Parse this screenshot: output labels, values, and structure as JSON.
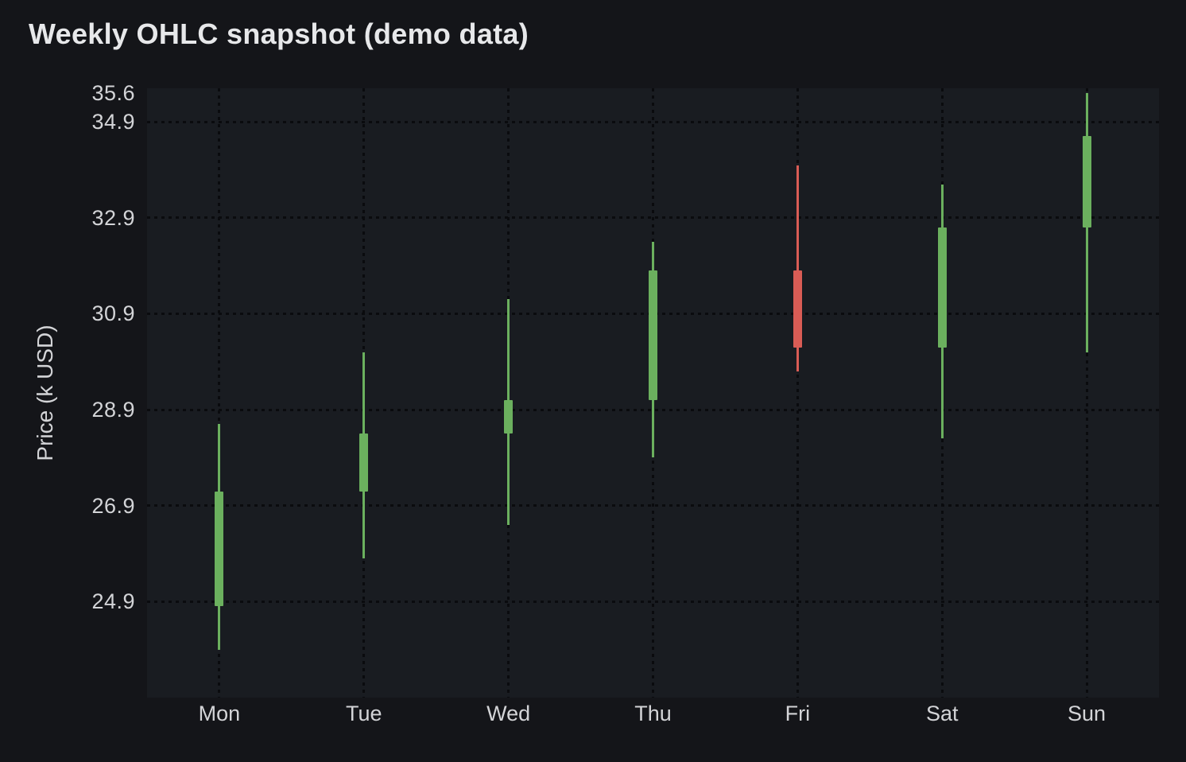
{
  "title": "Weekly OHLC snapshot (demo data)",
  "theme": {
    "page_bg": "#141519",
    "plot_bg": "#191c21",
    "grid_color": "#0a0b0e",
    "title_color": "#e7e8ea",
    "tick_label_color": "#d3d4d7"
  },
  "chart_data": {
    "type": "candlestick",
    "title": "Weekly OHLC snapshot (demo data)",
    "xlabel": "",
    "ylabel": "Price (k USD)",
    "categories": [
      "Mon",
      "Tue",
      "Wed",
      "Thu",
      "Fri",
      "Sat",
      "Sun"
    ],
    "series": [
      {
        "day": "Mon",
        "open": 24.8,
        "high": 28.6,
        "low": 23.9,
        "close": 27.2,
        "direction": "up"
      },
      {
        "day": "Tue",
        "open": 27.2,
        "high": 30.1,
        "low": 25.8,
        "close": 28.4,
        "direction": "up"
      },
      {
        "day": "Wed",
        "open": 28.4,
        "high": 31.2,
        "low": 26.5,
        "close": 29.1,
        "direction": "up"
      },
      {
        "day": "Thu",
        "open": 29.1,
        "high": 32.4,
        "low": 27.9,
        "close": 31.8,
        "direction": "up"
      },
      {
        "day": "Fri",
        "open": 31.8,
        "high": 34.0,
        "low": 29.7,
        "close": 30.2,
        "direction": "down"
      },
      {
        "day": "Sat",
        "open": 30.2,
        "high": 33.6,
        "low": 28.3,
        "close": 32.7,
        "direction": "up"
      },
      {
        "day": "Sun",
        "open": 32.7,
        "high": 35.5,
        "low": 30.1,
        "close": 34.6,
        "direction": "up"
      }
    ],
    "ylim": [
      22.9,
      35.6
    ],
    "yticks": [
      {
        "label": "35.6",
        "value": 35.6,
        "grid": false
      },
      {
        "label": "34.9",
        "value": 34.9,
        "grid": true
      },
      {
        "label": "32.9",
        "value": 32.9,
        "grid": true
      },
      {
        "label": "30.9",
        "value": 30.9,
        "grid": true
      },
      {
        "label": "28.9",
        "value": 28.9,
        "grid": true
      },
      {
        "label": "26.9",
        "value": 26.9,
        "grid": true
      },
      {
        "label": "24.9",
        "value": 24.9,
        "grid": true
      }
    ],
    "grid": "dotted",
    "legend": "none",
    "up_color": "#6bb05e",
    "down_color": "#d95c55"
  }
}
